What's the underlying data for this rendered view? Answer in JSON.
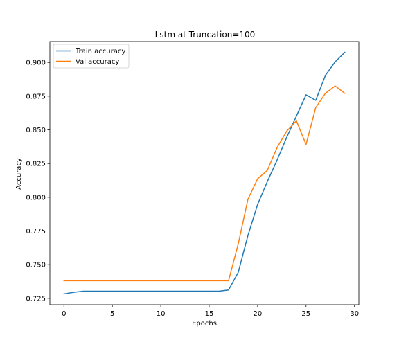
{
  "chart_data": {
    "type": "line",
    "title": "Lstm at Truncation=100",
    "xlabel": "Epochs",
    "ylabel": "Accuracy",
    "xlim": [
      -1.45,
      30.45
    ],
    "ylim": [
      0.7203,
      0.9155
    ],
    "xticks": [
      0,
      5,
      10,
      15,
      20,
      25,
      30
    ],
    "xtick_labels": [
      "0",
      "5",
      "10",
      "15",
      "20",
      "25",
      "30"
    ],
    "yticks": [
      0.725,
      0.75,
      0.775,
      0.8,
      0.825,
      0.85,
      0.875,
      0.9
    ],
    "ytick_labels": [
      "0.725",
      "0.750",
      "0.775",
      "0.800",
      "0.825",
      "0.850",
      "0.875",
      "0.900"
    ],
    "grid": false,
    "legend_position": "top-left",
    "x": [
      0,
      1,
      2,
      3,
      4,
      5,
      6,
      7,
      8,
      9,
      10,
      11,
      12,
      13,
      14,
      15,
      16,
      17,
      18,
      19,
      20,
      21,
      22,
      23,
      24,
      25,
      26,
      27,
      28,
      29
    ],
    "series": [
      {
        "name": "Train accuracy",
        "color": "#1f77b4",
        "values": [
          0.7283,
          0.7295,
          0.7303,
          0.7303,
          0.7303,
          0.7303,
          0.7303,
          0.7303,
          0.7303,
          0.7303,
          0.7303,
          0.7303,
          0.7303,
          0.7303,
          0.7303,
          0.7303,
          0.7303,
          0.7312,
          0.7443,
          0.7717,
          0.7947,
          0.8116,
          0.8274,
          0.8444,
          0.8601,
          0.876,
          0.8719,
          0.8904,
          0.9004,
          0.9075
        ]
      },
      {
        "name": "Val accuracy",
        "color": "#ff7f0e",
        "values": [
          0.7381,
          0.7381,
          0.7381,
          0.7381,
          0.7381,
          0.7381,
          0.7381,
          0.7381,
          0.7381,
          0.7381,
          0.7381,
          0.7381,
          0.7381,
          0.7381,
          0.7381,
          0.7381,
          0.7381,
          0.7381,
          0.7654,
          0.7985,
          0.8137,
          0.8199,
          0.8367,
          0.849,
          0.8567,
          0.8392,
          0.8665,
          0.8771,
          0.8826,
          0.8771
        ]
      }
    ]
  }
}
